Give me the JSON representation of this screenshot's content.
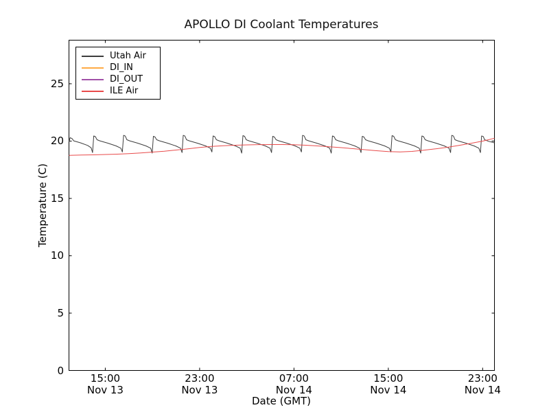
{
  "chart_data": {
    "type": "line",
    "title": "APOLLO DI Coolant Temperatures",
    "xlabel": "Date (GMT)",
    "ylabel": "Temperature (C)",
    "x_unit": "hours since Nov 13 00:00 GMT",
    "xlim": [
      11.92,
      48.0
    ],
    "ylim": [
      0,
      28.8
    ],
    "grid": false,
    "legend_position": "upper left",
    "y_ticks": [
      0,
      5,
      10,
      15,
      20,
      25
    ],
    "x_ticks": [
      {
        "hour": 15,
        "time": "15:00",
        "date": "Nov 13"
      },
      {
        "hour": 23,
        "time": "23:00",
        "date": "Nov 13"
      },
      {
        "hour": 31,
        "time": "07:00",
        "date": "Nov 14"
      },
      {
        "hour": 39,
        "time": "15:00",
        "date": "Nov 14"
      },
      {
        "hour": 47,
        "time": "23:00",
        "date": "Nov 14"
      }
    ],
    "series": [
      {
        "name": "Utah Air",
        "color": "#3c3c3c",
        "points": [
          [
            11.92,
            19.95
          ],
          [
            12.02,
            20.3
          ],
          [
            12.18,
            20.22
          ],
          [
            12.32,
            20.02
          ],
          [
            12.9,
            19.85
          ],
          [
            13.5,
            19.62
          ],
          [
            13.8,
            19.42
          ],
          [
            13.92,
            19.0
          ],
          [
            14.02,
            20.45
          ],
          [
            14.16,
            20.39
          ],
          [
            14.3,
            20.12
          ],
          [
            14.54,
            20.02
          ],
          [
            15.22,
            19.82
          ],
          [
            15.92,
            19.58
          ],
          [
            16.32,
            19.38
          ],
          [
            16.45,
            19.05
          ],
          [
            16.55,
            20.5
          ],
          [
            16.69,
            20.44
          ],
          [
            16.83,
            20.12
          ],
          [
            17.07,
            20.02
          ],
          [
            17.75,
            19.82
          ],
          [
            18.45,
            19.58
          ],
          [
            18.85,
            19.38
          ],
          [
            18.98,
            18.95
          ],
          [
            19.08,
            20.42
          ],
          [
            19.22,
            20.36
          ],
          [
            19.36,
            20.12
          ],
          [
            19.6,
            20.02
          ],
          [
            20.28,
            19.82
          ],
          [
            20.98,
            19.58
          ],
          [
            21.38,
            19.38
          ],
          [
            21.51,
            19.0
          ],
          [
            21.61,
            20.5
          ],
          [
            21.75,
            20.44
          ],
          [
            21.89,
            20.12
          ],
          [
            22.13,
            20.02
          ],
          [
            22.81,
            19.82
          ],
          [
            23.51,
            19.58
          ],
          [
            23.91,
            19.38
          ],
          [
            24.04,
            19.05
          ],
          [
            24.14,
            20.45
          ],
          [
            24.28,
            20.39
          ],
          [
            24.42,
            20.12
          ],
          [
            24.66,
            20.02
          ],
          [
            25.34,
            19.82
          ],
          [
            26.04,
            19.58
          ],
          [
            26.44,
            19.38
          ],
          [
            26.57,
            18.95
          ],
          [
            26.67,
            20.48
          ],
          [
            26.81,
            20.42
          ],
          [
            26.95,
            20.12
          ],
          [
            27.19,
            20.02
          ],
          [
            27.87,
            19.82
          ],
          [
            28.57,
            19.58
          ],
          [
            28.97,
            19.38
          ],
          [
            29.1,
            19.0
          ],
          [
            29.2,
            20.42
          ],
          [
            29.34,
            20.36
          ],
          [
            29.48,
            20.12
          ],
          [
            29.72,
            20.02
          ],
          [
            30.4,
            19.82
          ],
          [
            31.1,
            19.58
          ],
          [
            31.5,
            19.38
          ],
          [
            31.63,
            19.05
          ],
          [
            31.73,
            20.5
          ],
          [
            31.87,
            20.44
          ],
          [
            32.01,
            20.12
          ],
          [
            32.25,
            20.02
          ],
          [
            32.93,
            19.82
          ],
          [
            33.63,
            19.58
          ],
          [
            34.03,
            19.38
          ],
          [
            34.16,
            18.95
          ],
          [
            34.26,
            20.45
          ],
          [
            34.4,
            20.39
          ],
          [
            34.54,
            20.12
          ],
          [
            34.78,
            20.02
          ],
          [
            35.46,
            19.82
          ],
          [
            36.16,
            19.58
          ],
          [
            36.56,
            19.38
          ],
          [
            36.69,
            19.0
          ],
          [
            36.79,
            20.42
          ],
          [
            36.93,
            20.36
          ],
          [
            37.07,
            20.12
          ],
          [
            37.31,
            20.02
          ],
          [
            37.99,
            19.82
          ],
          [
            38.69,
            19.58
          ],
          [
            39.09,
            19.38
          ],
          [
            39.22,
            19.05
          ],
          [
            39.32,
            20.48
          ],
          [
            39.46,
            20.42
          ],
          [
            39.6,
            20.12
          ],
          [
            39.84,
            20.02
          ],
          [
            40.52,
            19.82
          ],
          [
            41.22,
            19.58
          ],
          [
            41.62,
            19.38
          ],
          [
            41.75,
            18.95
          ],
          [
            41.85,
            20.45
          ],
          [
            41.99,
            20.39
          ],
          [
            42.13,
            20.12
          ],
          [
            42.37,
            20.02
          ],
          [
            43.05,
            19.82
          ],
          [
            43.75,
            19.58
          ],
          [
            44.15,
            19.38
          ],
          [
            44.28,
            19.0
          ],
          [
            44.38,
            20.5
          ],
          [
            44.52,
            20.44
          ],
          [
            44.66,
            20.12
          ],
          [
            44.9,
            20.02
          ],
          [
            45.58,
            19.82
          ],
          [
            46.28,
            19.58
          ],
          [
            46.68,
            19.38
          ],
          [
            46.81,
            19.0
          ],
          [
            46.91,
            20.45
          ],
          [
            47.05,
            20.4
          ],
          [
            47.17,
            20.12
          ],
          [
            47.5,
            19.98
          ],
          [
            47.8,
            19.9
          ],
          [
            48.0,
            19.85
          ]
        ]
      },
      {
        "name": "DI_IN",
        "color": "#ffaa44",
        "points": []
      },
      {
        "name": "DI_OUT",
        "color": "#a050a8",
        "points": []
      },
      {
        "name": "ILE Air",
        "color": "#e84a4a",
        "points": [
          [
            11.92,
            18.75
          ],
          [
            13,
            18.78
          ],
          [
            14,
            18.8
          ],
          [
            15,
            18.83
          ],
          [
            16,
            18.86
          ],
          [
            17,
            18.9
          ],
          [
            18,
            18.96
          ],
          [
            19,
            19.04
          ],
          [
            20,
            19.12
          ],
          [
            21,
            19.22
          ],
          [
            22,
            19.33
          ],
          [
            23,
            19.44
          ],
          [
            24,
            19.53
          ],
          [
            25,
            19.6
          ],
          [
            26,
            19.64
          ],
          [
            27,
            19.67
          ],
          [
            28,
            19.69
          ],
          [
            29,
            19.7
          ],
          [
            30,
            19.7
          ],
          [
            31,
            19.68
          ],
          [
            32,
            19.64
          ],
          [
            33,
            19.58
          ],
          [
            34,
            19.51
          ],
          [
            35,
            19.43
          ],
          [
            36,
            19.34
          ],
          [
            37,
            19.25
          ],
          [
            38,
            19.16
          ],
          [
            39,
            19.09
          ],
          [
            40,
            19.06
          ],
          [
            41,
            19.1
          ],
          [
            42,
            19.2
          ],
          [
            43,
            19.32
          ],
          [
            44,
            19.46
          ],
          [
            45,
            19.62
          ],
          [
            46,
            19.8
          ],
          [
            47,
            20.0
          ],
          [
            47.5,
            20.12
          ],
          [
            48,
            20.25
          ]
        ]
      }
    ]
  }
}
